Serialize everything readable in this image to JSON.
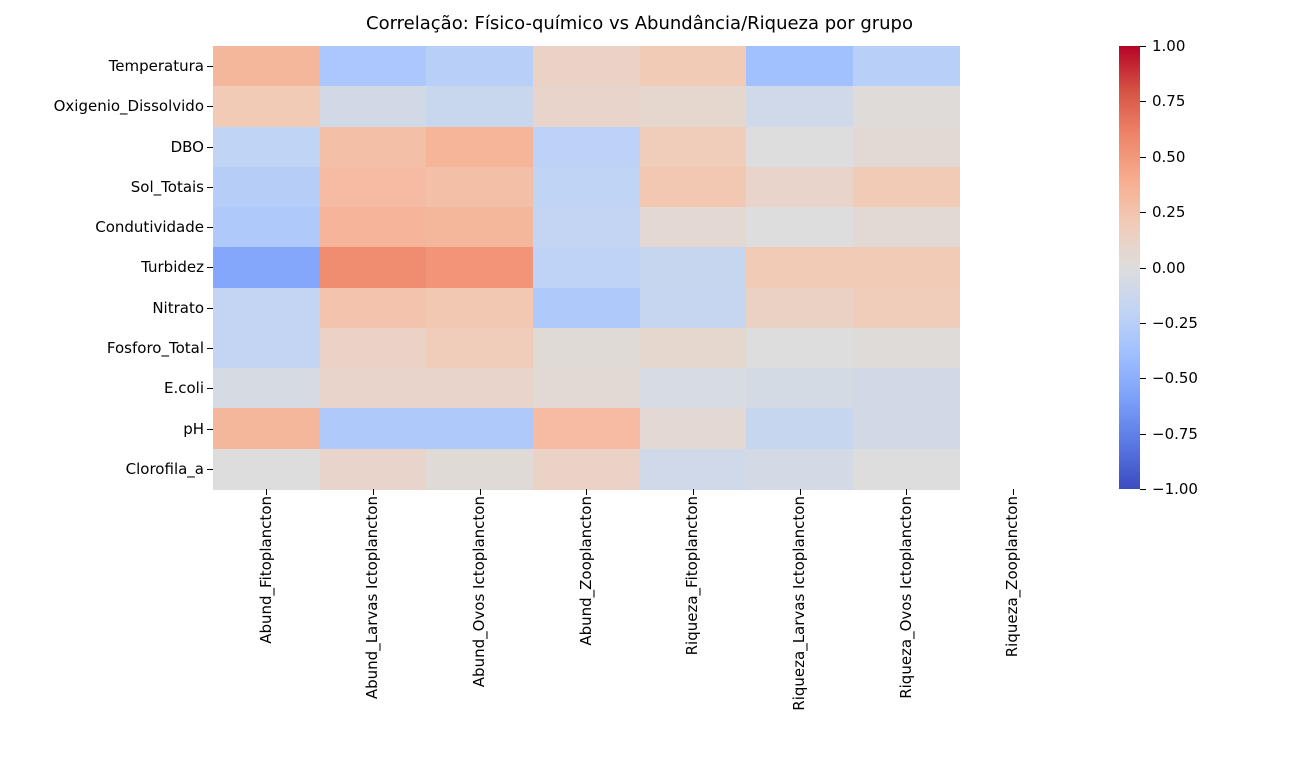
{
  "chart_data": {
    "type": "heatmap",
    "title": "Correlação: Físico-químico vs Abundância/Riqueza por grupo",
    "rows": [
      "Temperatura",
      "Oxigenio_Dissolvido",
      "DBO",
      "Sol_Totais",
      "Condutividade",
      "Turbidez",
      "Nitrato",
      "Fosforo_Total",
      "E.coli",
      "pH",
      "Clorofila_a"
    ],
    "columns": [
      "Abund_Fitoplancton",
      "Abund_Larvas Ictoplancton",
      "Abund_Ovos Ictoplancton",
      "Abund_Zooplancton",
      "Riqueza_Fitoplancton",
      "Riqueza_Larvas Ictoplancton",
      "Riqueza_Ovos Ictoplancton",
      "Riqueza_Zooplancton"
    ],
    "values": [
      [
        0.33,
        -0.32,
        -0.25,
        0.12,
        0.2,
        -0.38,
        -0.25,
        null
      ],
      [
        0.2,
        -0.08,
        -0.14,
        0.1,
        0.08,
        -0.1,
        0.02,
        null
      ],
      [
        -0.2,
        0.28,
        0.35,
        -0.22,
        0.18,
        0.0,
        0.05,
        null
      ],
      [
        -0.26,
        0.3,
        0.28,
        -0.2,
        0.22,
        0.1,
        0.2,
        null
      ],
      [
        -0.3,
        0.34,
        0.33,
        -0.18,
        0.06,
        0.0,
        0.05,
        null
      ],
      [
        -0.55,
        0.56,
        0.52,
        -0.21,
        -0.15,
        0.2,
        0.2,
        null
      ],
      [
        -0.18,
        0.25,
        0.22,
        -0.3,
        -0.16,
        0.13,
        0.18,
        null
      ],
      [
        -0.18,
        0.12,
        0.18,
        0.03,
        0.08,
        0.0,
        0.02,
        null
      ],
      [
        -0.05,
        0.1,
        0.1,
        0.05,
        -0.04,
        -0.06,
        -0.08,
        null
      ],
      [
        0.33,
        -0.3,
        -0.3,
        0.3,
        0.06,
        -0.15,
        -0.08,
        null
      ],
      [
        0.0,
        0.1,
        0.03,
        0.12,
        -0.1,
        -0.07,
        0.0,
        null
      ]
    ],
    "value_range": [
      -1,
      1
    ],
    "colorbar_ticks": [
      "1.00",
      "0.75",
      "0.50",
      "0.25",
      "0.00",
      "−0.25",
      "−0.50",
      "−0.75",
      "−1.00"
    ],
    "colorbar_tick_values": [
      1.0,
      0.75,
      0.5,
      0.25,
      0.0,
      -0.25,
      -0.5,
      -0.75,
      -1.0
    ],
    "colormap": {
      "name": "coolwarm",
      "stops": [
        "#3b4cc0",
        "#5977e3",
        "#7b9ff9",
        "#9ebeff",
        "#c0d4f5",
        "#dddddd",
        "#f2cbb7",
        "#f7ac8e",
        "#ee8468",
        "#d65244",
        "#b40426"
      ]
    },
    "null_color": "#ffffff",
    "background_color": "#ffffff",
    "legend_position": "right",
    "grid": false
  }
}
